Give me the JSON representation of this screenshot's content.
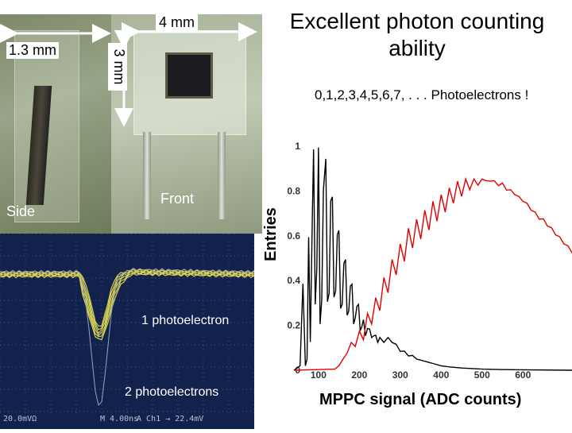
{
  "photos": {
    "side_label": "Side",
    "front_label": "Front",
    "dim_width": "4 mm",
    "dim_depth": "1.3 mm",
    "dim_height": "3 mm"
  },
  "scope": {
    "label_1pe": "1 photoelectron",
    "label_2pe": "2 photoelectrons",
    "status_left": "20.0mVΩ",
    "status_mid": "M 4.00ns",
    "status_trig": "A  Ch1 →  22.4mV"
  },
  "title": "Excellent photon counting ability",
  "subtitle": "0,1,2,3,4,5,6,7, . . . Photoelectrons !",
  "colors": {
    "black_series": "#000000",
    "red_series": "#e00000",
    "scope_bg": "#12224c",
    "scope_trace": "#d8d455"
  },
  "chart_data": {
    "type": "line",
    "xlabel": "MPPC signal (ADC counts)",
    "ylabel": "Entries",
    "xlim": [
      40,
      720
    ],
    "ylim": [
      0,
      1.05
    ],
    "xticks": [
      100,
      200,
      300,
      400,
      500,
      600
    ],
    "yticks": [
      0,
      0.2,
      0.4,
      0.6,
      0.8,
      1
    ],
    "series": [
      {
        "color": "#000000",
        "x": [
          40,
          55,
          62,
          68,
          72,
          76,
          80,
          85,
          88,
          92,
          96,
          100,
          104,
          108,
          112,
          118,
          122,
          126,
          130,
          134,
          138,
          142,
          146,
          150,
          154,
          158,
          162,
          166,
          170,
          174,
          178,
          182,
          186,
          190,
          194,
          198,
          202,
          206,
          210,
          215,
          220,
          225,
          230,
          235,
          240,
          245,
          250,
          260,
          270,
          280,
          290,
          300,
          310,
          320,
          330,
          340,
          350,
          360,
          380,
          400,
          420,
          450,
          500,
          550,
          600,
          720
        ],
        "y": [
          0,
          0.02,
          0.38,
          0.02,
          0.05,
          0.6,
          0.12,
          0.7,
          0.98,
          0.3,
          0.45,
          1.0,
          0.2,
          0.32,
          0.8,
          0.95,
          0.3,
          0.35,
          0.75,
          0.78,
          0.32,
          0.36,
          0.6,
          0.63,
          0.27,
          0.3,
          0.47,
          0.5,
          0.24,
          0.27,
          0.37,
          0.39,
          0.2,
          0.24,
          0.28,
          0.3,
          0.17,
          0.2,
          0.22,
          0.16,
          0.18,
          0.19,
          0.14,
          0.16,
          0.15,
          0.13,
          0.14,
          0.13,
          0.14,
          0.13,
          0.11,
          0.09,
          0.08,
          0.07,
          0.06,
          0.05,
          0.045,
          0.04,
          0.03,
          0.02,
          0.015,
          0.01,
          0.005,
          0.003,
          0.002,
          0
        ]
      },
      {
        "color": "#e00000",
        "x": [
          40,
          140,
          150,
          160,
          170,
          180,
          190,
          200,
          210,
          220,
          230,
          240,
          250,
          260,
          270,
          280,
          290,
          300,
          310,
          320,
          330,
          340,
          350,
          360,
          370,
          380,
          390,
          400,
          410,
          420,
          430,
          440,
          450,
          460,
          470,
          480,
          490,
          500,
          510,
          520,
          530,
          540,
          550,
          560,
          570,
          580,
          590,
          600,
          610,
          620,
          630,
          640,
          650,
          660,
          670,
          680,
          690,
          700,
          710,
          720
        ],
        "y": [
          0,
          0.005,
          0.02,
          0.05,
          0.07,
          0.13,
          0.1,
          0.18,
          0.13,
          0.26,
          0.2,
          0.33,
          0.26,
          0.42,
          0.34,
          0.5,
          0.42,
          0.57,
          0.48,
          0.64,
          0.54,
          0.68,
          0.58,
          0.72,
          0.62,
          0.76,
          0.66,
          0.79,
          0.7,
          0.82,
          0.74,
          0.85,
          0.77,
          0.86,
          0.8,
          0.86,
          0.82,
          0.86,
          0.84,
          0.85,
          0.84,
          0.83,
          0.83,
          0.81,
          0.8,
          0.79,
          0.77,
          0.76,
          0.74,
          0.72,
          0.7,
          0.68,
          0.67,
          0.65,
          0.63,
          0.61,
          0.59,
          0.57,
          0.55,
          0.53
        ]
      }
    ]
  }
}
